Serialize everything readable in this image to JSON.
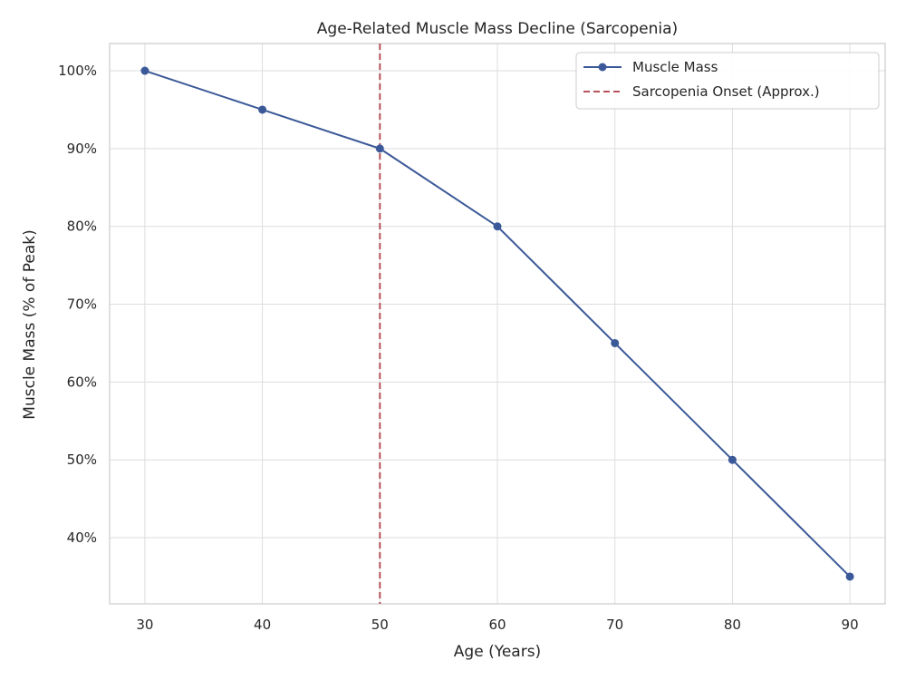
{
  "chart_data": {
    "type": "line",
    "title": "Age-Related Muscle Mass Decline (Sarcopenia)",
    "xlabel": "Age (Years)",
    "ylabel": "Muscle Mass (% of Peak)",
    "x": [
      30,
      40,
      50,
      60,
      70,
      80,
      90
    ],
    "x_ticks": [
      "30",
      "40",
      "50",
      "60",
      "70",
      "80",
      "90"
    ],
    "y_ticks": [
      "40%",
      "50%",
      "60%",
      "70%",
      "80%",
      "90%",
      "100%"
    ],
    "y_tick_values": [
      40,
      50,
      60,
      70,
      80,
      90,
      100
    ],
    "xlim": [
      27,
      93
    ],
    "ylim": [
      31.5,
      103.5
    ],
    "grid": true,
    "legend_position": "top-right",
    "series": [
      {
        "name": "Muscle Mass",
        "values": [
          100,
          95,
          90,
          80,
          65,
          50,
          35
        ],
        "color": "#3b5998",
        "marker": "circle",
        "line_style": "solid"
      }
    ],
    "reference_lines": [
      {
        "name": "Sarcopenia Onset (Approx.)",
        "orientation": "vertical",
        "x": 50,
        "color": "#b5525a",
        "line_style": "dashed"
      }
    ]
  }
}
